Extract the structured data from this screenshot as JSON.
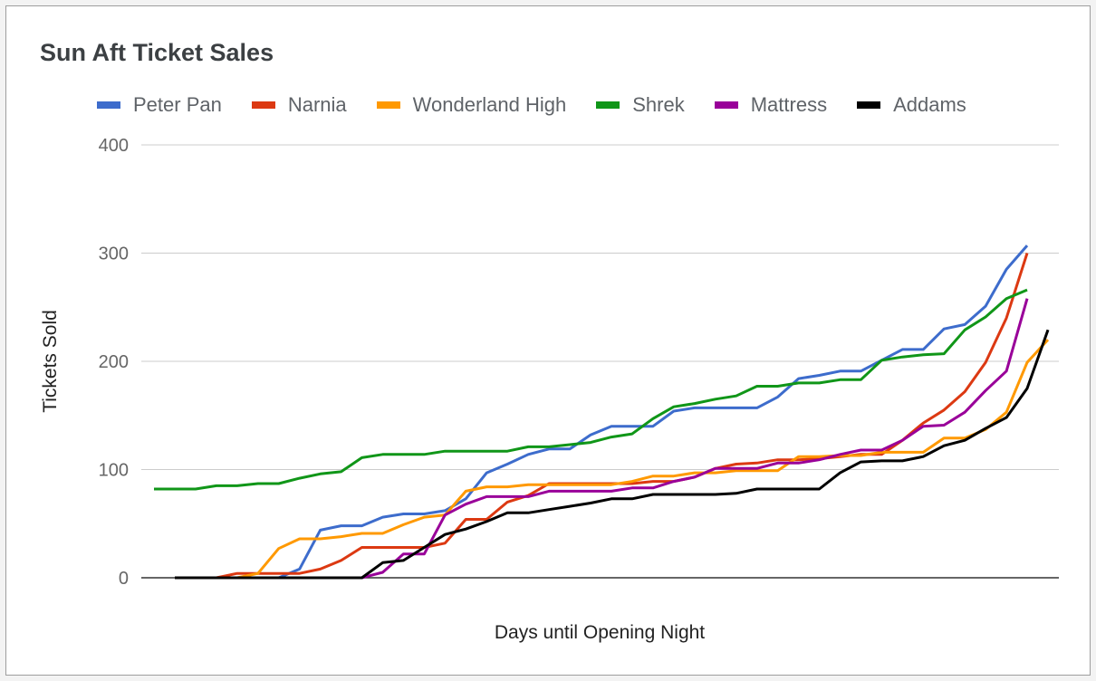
{
  "chart_data": {
    "type": "line",
    "title": "Sun Aft Ticket Sales",
    "xlabel": "Days until Opening Night",
    "ylabel": "Tickets Sold",
    "ylim": [
      0,
      400
    ],
    "yticks": [
      "0",
      "100",
      "200",
      "300",
      "400"
    ],
    "grid": true,
    "legend_position": "top",
    "x_tick_labels_shown": false,
    "x": [
      -43,
      -42,
      -41,
      -40,
      -39,
      -38,
      -37,
      -36,
      -35,
      -34,
      -33,
      -32,
      -31,
      -30,
      -29,
      -28,
      -27,
      -26,
      -25,
      -24,
      -23,
      -22,
      -21,
      -20,
      -19,
      -18,
      -17,
      -16,
      -15,
      -14,
      -13,
      -12,
      -11,
      -10,
      -9,
      -8,
      -7,
      -6,
      -5,
      -4,
      -3,
      -2,
      -1,
      0
    ],
    "series": [
      {
        "name": "Peter Pan",
        "color": "#3d6ccc",
        "values": [
          null,
          0,
          0,
          0,
          0,
          0,
          0,
          8,
          44,
          48,
          48,
          56,
          59,
          59,
          62,
          73,
          97,
          105,
          114,
          119,
          119,
          132,
          140,
          140,
          140,
          154,
          157,
          157,
          157,
          157,
          167,
          184,
          187,
          191,
          191,
          201,
          211,
          211,
          230,
          234,
          251,
          285,
          307,
          null
        ]
      },
      {
        "name": "Narnia",
        "color": "#dc3912",
        "values": [
          null,
          0,
          0,
          0,
          4,
          4,
          4,
          4,
          8,
          16,
          28,
          28,
          28,
          28,
          32,
          54,
          54,
          70,
          76,
          87,
          87,
          87,
          87,
          87,
          89,
          89,
          93,
          101,
          105,
          106,
          109,
          109,
          110,
          112,
          114,
          114,
          127,
          143,
          155,
          172,
          199,
          240,
          300,
          null
        ]
      },
      {
        "name": "Wonderland High",
        "color": "#ff9900",
        "values": [
          null,
          0,
          0,
          0,
          0,
          4,
          27,
          36,
          36,
          38,
          41,
          41,
          49,
          56,
          58,
          80,
          84,
          84,
          86,
          86,
          86,
          86,
          86,
          89,
          94,
          94,
          97,
          97,
          99,
          99,
          99,
          112,
          112,
          113,
          113,
          116,
          116,
          116,
          129,
          129,
          137,
          153,
          199,
          220
        ]
      },
      {
        "name": "Shrek",
        "color": "#109618",
        "values": [
          82,
          82,
          82,
          85,
          85,
          87,
          87,
          92,
          96,
          98,
          111,
          114,
          114,
          114,
          117,
          117,
          117,
          117,
          121,
          121,
          123,
          125,
          130,
          133,
          147,
          158,
          161,
          165,
          168,
          177,
          177,
          180,
          180,
          183,
          183,
          201,
          204,
          206,
          207,
          229,
          241,
          258,
          266,
          null
        ]
      },
      {
        "name": "Mattress",
        "color": "#990099",
        "values": [
          null,
          null,
          null,
          null,
          null,
          null,
          null,
          null,
          null,
          null,
          0,
          5,
          22,
          22,
          58,
          68,
          75,
          75,
          75,
          80,
          80,
          80,
          80,
          83,
          83,
          89,
          93,
          101,
          101,
          101,
          106,
          106,
          109,
          114,
          118,
          118,
          127,
          140,
          141,
          153,
          173,
          191,
          258,
          null
        ]
      },
      {
        "name": "Addams",
        "color": "#000000",
        "values": [
          null,
          0,
          0,
          0,
          0,
          0,
          0,
          0,
          0,
          0,
          0,
          14,
          16,
          28,
          40,
          45,
          52,
          60,
          60,
          63,
          66,
          69,
          73,
          73,
          77,
          77,
          77,
          77,
          78,
          82,
          82,
          82,
          82,
          97,
          107,
          108,
          108,
          112,
          122,
          127,
          138,
          148,
          175,
          229
        ]
      }
    ]
  }
}
